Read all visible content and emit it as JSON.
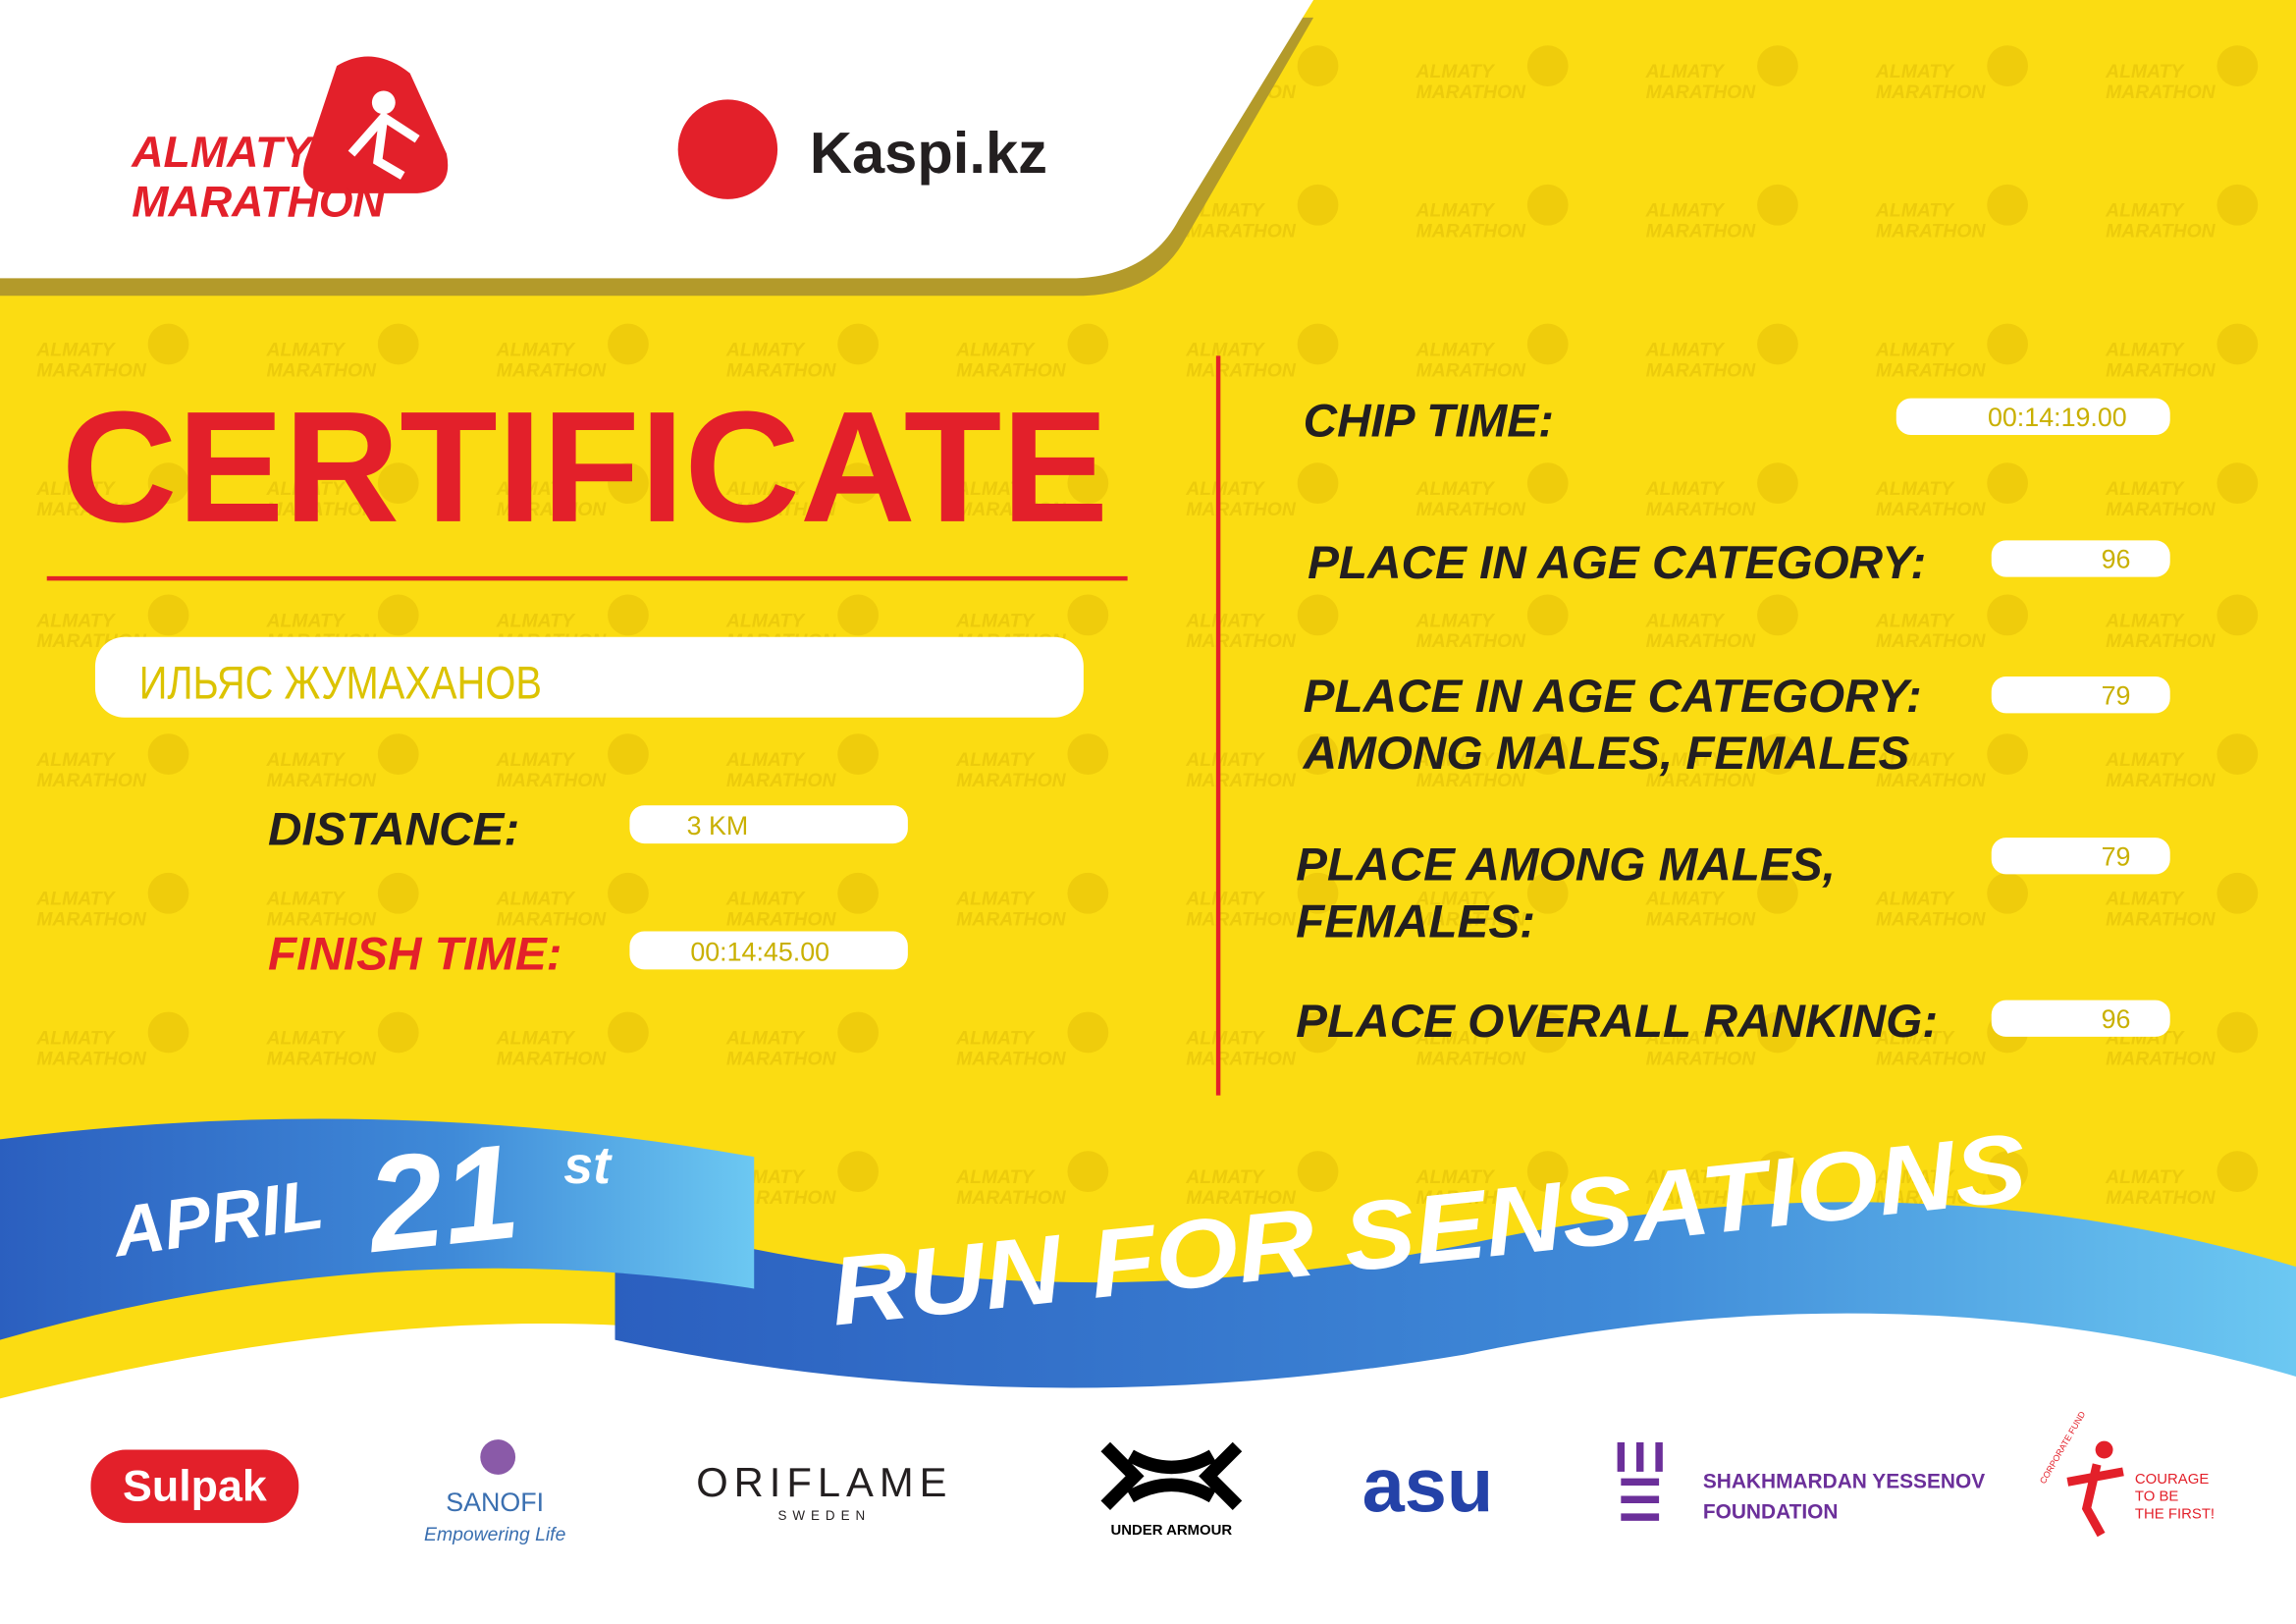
{
  "header": {
    "brand": [
      "ALMATY",
      "MARATHON"
    ],
    "partner": "Kaspi.kz"
  },
  "watermark": [
    "ALMATY",
    "MARATHON"
  ],
  "certificate": {
    "title": "CERTIFICATE",
    "name": "ИЛЬЯС ЖУМАХАНОВ",
    "distance": {
      "label": "DISTANCE:",
      "value": "3 KM"
    },
    "finish_time": {
      "label": "FINISH TIME:",
      "value": "00:14:45.00"
    }
  },
  "results": [
    {
      "label": [
        "CHIP TIME:"
      ],
      "value": "00:14:19.00"
    },
    {
      "label": [
        "PLACE IN AGE CATEGORY:"
      ],
      "value": "96"
    },
    {
      "label": [
        "PLACE IN AGE CATEGORY:",
        "AMONG MALES, FEMALES"
      ],
      "value": "79"
    },
    {
      "label": [
        "PLACE AMONG MALES,",
        "FEMALES:"
      ],
      "value": "79"
    },
    {
      "label": [
        "PLACE OVERALL RANKING:"
      ],
      "value": "96"
    }
  ],
  "ribbon": {
    "month": "APRIL",
    "day": "21",
    "suffix": "st",
    "slogan": "RUN FOR SENSATIONS"
  },
  "sponsors": {
    "sulpak": "Sulpak",
    "sanofi": [
      "SANOFI",
      "Empowering Life"
    ],
    "oriflame": [
      "ORIFLAME",
      "SWEDEN"
    ],
    "under_armour": "UNDER ARMOUR",
    "asu": "asu",
    "yessenov": [
      "SHAKHMARDAN YESSENOV",
      "FOUNDATION"
    ],
    "fund": [
      "CORPORATE FUND",
      "COURAGE",
      "TO BE",
      "THE FIRST!"
    ]
  }
}
